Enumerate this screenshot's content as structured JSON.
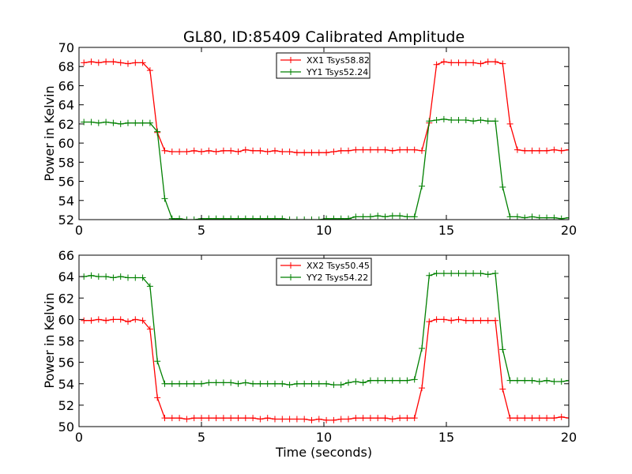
{
  "title": "GL80, ID:85409 Calibrated Amplitude",
  "chart_data": [
    {
      "type": "line",
      "title": "GL80, ID:85409 Calibrated Amplitude",
      "xlabel": "",
      "ylabel": "Power in Kelvin",
      "xlim": [
        0,
        20
      ],
      "ylim": [
        52,
        70
      ],
      "x_ticks": [
        "0",
        "5",
        "10",
        "15",
        "20"
      ],
      "y_ticks": [
        "52",
        "54",
        "56",
        "58",
        "60",
        "62",
        "64",
        "66",
        "68",
        "70"
      ],
      "legend_position": "top-center",
      "series": [
        {
          "name": "XX1 Tsys58.82",
          "color": "#ff0000",
          "x": [
            0.2,
            0.5,
            0.8,
            1.1,
            1.4,
            1.7,
            2.0,
            2.3,
            2.6,
            2.9,
            3.2,
            3.5,
            3.8,
            4.1,
            4.4,
            4.7,
            5.0,
            5.3,
            5.6,
            5.9,
            6.2,
            6.5,
            6.8,
            7.1,
            7.4,
            7.7,
            8.0,
            8.3,
            8.6,
            8.9,
            9.2,
            9.5,
            9.8,
            10.1,
            10.4,
            10.7,
            11.0,
            11.3,
            11.6,
            11.9,
            12.2,
            12.5,
            12.8,
            13.1,
            13.4,
            13.7,
            14.0,
            14.3,
            14.6,
            14.9,
            15.2,
            15.5,
            15.8,
            16.1,
            16.4,
            16.7,
            17.0,
            17.3,
            17.6,
            17.9,
            18.2,
            18.5,
            18.8,
            19.1,
            19.4,
            19.7,
            20.0
          ],
          "y": [
            68.4,
            68.5,
            68.4,
            68.5,
            68.5,
            68.4,
            68.3,
            68.4,
            68.4,
            67.6,
            61.1,
            59.2,
            59.1,
            59.1,
            59.1,
            59.2,
            59.1,
            59.2,
            59.1,
            59.2,
            59.2,
            59.1,
            59.3,
            59.2,
            59.2,
            59.1,
            59.2,
            59.1,
            59.1,
            59.0,
            59.0,
            59.0,
            59.0,
            59.0,
            59.1,
            59.2,
            59.2,
            59.3,
            59.3,
            59.3,
            59.3,
            59.3,
            59.2,
            59.3,
            59.3,
            59.3,
            59.2,
            62.1,
            68.2,
            68.5,
            68.4,
            68.4,
            68.4,
            68.4,
            68.3,
            68.5,
            68.5,
            68.3,
            62.0,
            59.3,
            59.2,
            59.2,
            59.2,
            59.2,
            59.3,
            59.2,
            59.3
          ]
        },
        {
          "name": "YY1 Tsys52.24",
          "color": "#008000",
          "x": [
            0.2,
            0.5,
            0.8,
            1.1,
            1.4,
            1.7,
            2.0,
            2.3,
            2.6,
            2.9,
            3.2,
            3.5,
            3.8,
            4.1,
            4.4,
            4.7,
            5.0,
            5.3,
            5.6,
            5.9,
            6.2,
            6.5,
            6.8,
            7.1,
            7.4,
            7.7,
            8.0,
            8.3,
            8.6,
            8.9,
            9.2,
            9.5,
            9.8,
            10.1,
            10.4,
            10.7,
            11.0,
            11.3,
            11.6,
            11.9,
            12.2,
            12.5,
            12.8,
            13.1,
            13.4,
            13.7,
            14.0,
            14.3,
            14.6,
            14.9,
            15.2,
            15.5,
            15.8,
            16.1,
            16.4,
            16.7,
            17.0,
            17.3,
            17.6,
            17.9,
            18.2,
            18.5,
            18.8,
            19.1,
            19.4,
            19.7,
            20.0
          ],
          "y": [
            62.2,
            62.2,
            62.1,
            62.2,
            62.1,
            62.0,
            62.1,
            62.1,
            62.1,
            62.1,
            61.2,
            54.2,
            52.1,
            52.1,
            52.0,
            52.0,
            52.1,
            52.1,
            52.1,
            52.1,
            52.1,
            52.1,
            52.1,
            52.1,
            52.1,
            52.1,
            52.1,
            52.1,
            52.0,
            52.0,
            52.0,
            52.0,
            52.0,
            52.1,
            52.1,
            52.1,
            52.1,
            52.3,
            52.3,
            52.3,
            52.4,
            52.3,
            52.4,
            52.4,
            52.3,
            52.3,
            55.5,
            62.3,
            62.4,
            62.5,
            62.4,
            62.4,
            62.4,
            62.3,
            62.4,
            62.3,
            62.3,
            55.4,
            52.3,
            52.3,
            52.2,
            52.3,
            52.2,
            52.2,
            52.2,
            52.1,
            52.2
          ]
        }
      ]
    },
    {
      "type": "line",
      "title": "",
      "xlabel": "Time (seconds)",
      "ylabel": "Power in Kelvin",
      "xlim": [
        0,
        20
      ],
      "ylim": [
        50,
        66
      ],
      "x_ticks": [
        "0",
        "5",
        "10",
        "15",
        "20"
      ],
      "y_ticks": [
        "50",
        "52",
        "54",
        "56",
        "58",
        "60",
        "62",
        "64",
        "66"
      ],
      "legend_position": "top-center",
      "series": [
        {
          "name": "XX2 Tsys50.45",
          "color": "#ff0000",
          "x": [
            0.2,
            0.5,
            0.8,
            1.1,
            1.4,
            1.7,
            2.0,
            2.3,
            2.6,
            2.9,
            3.2,
            3.5,
            3.8,
            4.1,
            4.4,
            4.7,
            5.0,
            5.3,
            5.6,
            5.9,
            6.2,
            6.5,
            6.8,
            7.1,
            7.4,
            7.7,
            8.0,
            8.3,
            8.6,
            8.9,
            9.2,
            9.5,
            9.8,
            10.1,
            10.4,
            10.7,
            11.0,
            11.3,
            11.6,
            11.9,
            12.2,
            12.5,
            12.8,
            13.1,
            13.4,
            13.7,
            14.0,
            14.3,
            14.6,
            14.9,
            15.2,
            15.5,
            15.8,
            16.1,
            16.4,
            16.7,
            17.0,
            17.3,
            17.6,
            17.9,
            18.2,
            18.5,
            18.8,
            19.1,
            19.4,
            19.7,
            20.0
          ],
          "y": [
            59.9,
            59.9,
            60.0,
            59.9,
            60.0,
            60.0,
            59.8,
            60.0,
            59.9,
            59.1,
            52.7,
            50.8,
            50.8,
            50.8,
            50.7,
            50.8,
            50.8,
            50.8,
            50.8,
            50.8,
            50.8,
            50.8,
            50.8,
            50.8,
            50.7,
            50.8,
            50.7,
            50.7,
            50.7,
            50.7,
            50.7,
            50.6,
            50.7,
            50.6,
            50.6,
            50.7,
            50.7,
            50.8,
            50.8,
            50.8,
            50.8,
            50.8,
            50.7,
            50.8,
            50.8,
            50.8,
            53.6,
            59.8,
            60.0,
            60.0,
            59.9,
            60.0,
            59.9,
            59.9,
            59.9,
            59.9,
            59.9,
            53.5,
            50.8,
            50.8,
            50.8,
            50.8,
            50.8,
            50.8,
            50.8,
            50.9,
            50.8
          ]
        },
        {
          "name": "YY2 Tsys54.22",
          "color": "#008000",
          "x": [
            0.2,
            0.5,
            0.8,
            1.1,
            1.4,
            1.7,
            2.0,
            2.3,
            2.6,
            2.9,
            3.2,
            3.5,
            3.8,
            4.1,
            4.4,
            4.7,
            5.0,
            5.3,
            5.6,
            5.9,
            6.2,
            6.5,
            6.8,
            7.1,
            7.4,
            7.7,
            8.0,
            8.3,
            8.6,
            8.9,
            9.2,
            9.5,
            9.8,
            10.1,
            10.4,
            10.7,
            11.0,
            11.3,
            11.6,
            11.9,
            12.2,
            12.5,
            12.8,
            13.1,
            13.4,
            13.7,
            14.0,
            14.3,
            14.6,
            14.9,
            15.2,
            15.5,
            15.8,
            16.1,
            16.4,
            16.7,
            17.0,
            17.3,
            17.6,
            17.9,
            18.2,
            18.5,
            18.8,
            19.1,
            19.4,
            19.7,
            20.0
          ],
          "y": [
            64.0,
            64.1,
            64.0,
            64.0,
            63.9,
            64.0,
            63.9,
            63.9,
            63.9,
            63.1,
            56.1,
            54.0,
            54.0,
            54.0,
            54.0,
            54.0,
            54.0,
            54.1,
            54.1,
            54.1,
            54.1,
            54.0,
            54.1,
            54.0,
            54.0,
            54.0,
            54.0,
            54.0,
            53.9,
            54.0,
            54.0,
            54.0,
            54.0,
            54.0,
            53.9,
            53.9,
            54.1,
            54.2,
            54.1,
            54.3,
            54.3,
            54.3,
            54.3,
            54.3,
            54.3,
            54.4,
            57.3,
            64.1,
            64.3,
            64.3,
            64.3,
            64.3,
            64.3,
            64.3,
            64.3,
            64.2,
            64.3,
            57.2,
            54.3,
            54.3,
            54.3,
            54.3,
            54.2,
            54.3,
            54.2,
            54.2,
            54.3
          ]
        }
      ]
    }
  ]
}
